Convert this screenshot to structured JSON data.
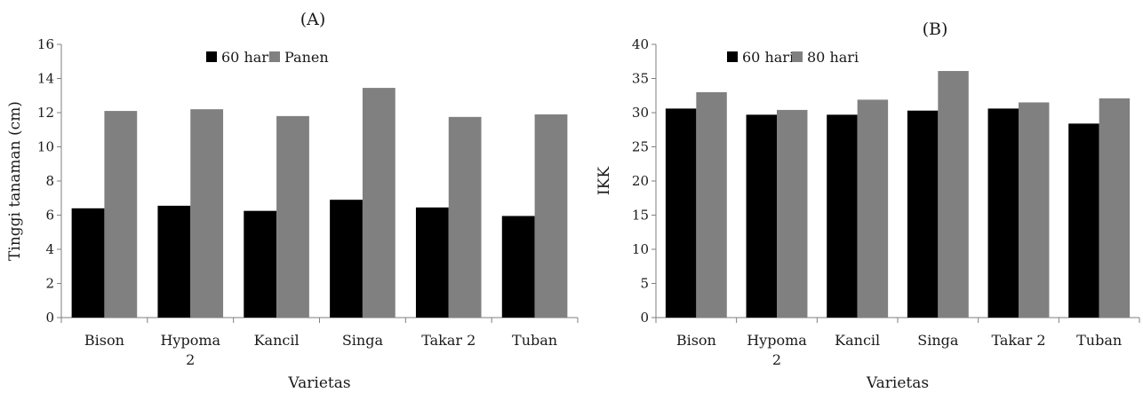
{
  "chart_data": [
    {
      "type": "bar",
      "title": "(A)",
      "xlabel": "Varietas",
      "ylabel": "Tinggi tanaman (cm)",
      "ylim": [
        0,
        16
      ],
      "yticks": [
        "0",
        "2",
        "4",
        "6",
        "8",
        "10",
        "12",
        "14",
        "16"
      ],
      "categories": [
        "Bison",
        "Hypoma 2",
        "Kancil",
        "Singa",
        "Takar 2",
        "Tuban"
      ],
      "series": [
        {
          "name": "60 hari",
          "color": "#000000",
          "values": [
            6.4,
            6.55,
            6.25,
            6.9,
            6.45,
            5.95
          ]
        },
        {
          "name": "Panen",
          "color": "#808080",
          "values": [
            12.1,
            12.2,
            11.8,
            13.45,
            11.75,
            11.9
          ]
        }
      ],
      "legend": "top-center",
      "grid": false
    },
    {
      "type": "bar",
      "title": "(B)",
      "xlabel": "Varietas",
      "ylabel": "IKK",
      "ylim": [
        0,
        40
      ],
      "yticks": [
        "0",
        "5",
        "10",
        "15",
        "20",
        "25",
        "30",
        "35",
        "40"
      ],
      "categories": [
        "Bison",
        "Hypoma 2",
        "Kancil",
        "Singa",
        "Takar 2",
        "Tuban"
      ],
      "series": [
        {
          "name": "60 hari",
          "color": "#000000",
          "values": [
            30.6,
            29.7,
            29.7,
            30.3,
            30.6,
            28.4
          ]
        },
        {
          "name": "80 hari",
          "color": "#808080",
          "values": [
            33.0,
            30.4,
            31.9,
            36.1,
            31.5,
            32.1
          ]
        }
      ],
      "legend": "top-left",
      "grid": false
    }
  ]
}
